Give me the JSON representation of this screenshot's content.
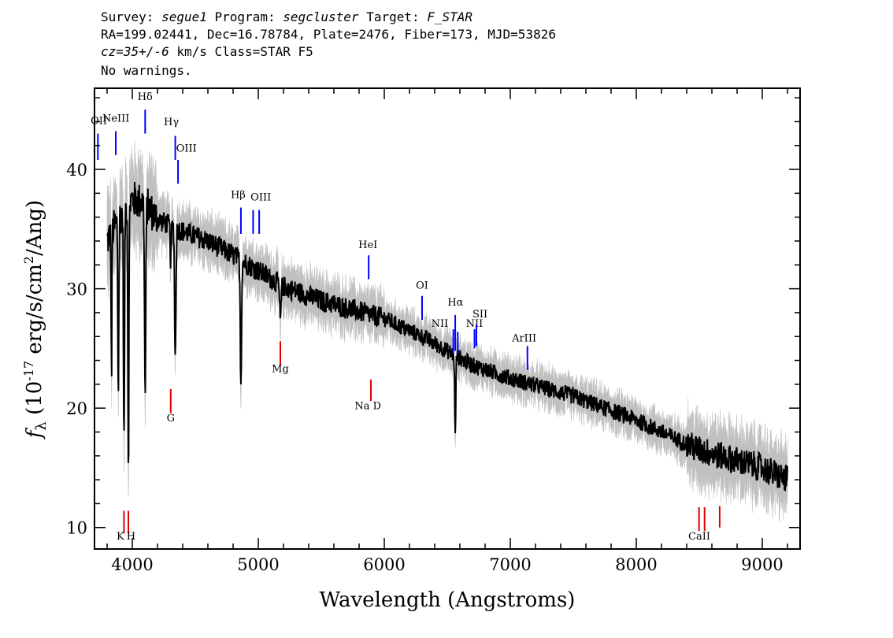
{
  "header": {
    "survey_label": "Survey:",
    "survey": "segue1",
    "program_label": "Program:",
    "program": "segcluster",
    "target_label": "Target:",
    "target": "F_STAR",
    "line2": "RA=199.02441, Dec=16.78784, Plate=2476, Fiber=173, MJD=53826",
    "cz": "cz=35+/-6",
    "cz_units": "km/s",
    "class": "Class=STAR F5",
    "warnings": "No warnings."
  },
  "colors": {
    "flux": "#000000",
    "error_band": "#c0c0c0",
    "emission": "#0000ff",
    "absorption": "#dd0000"
  },
  "chart_data": {
    "type": "line",
    "xlabel": "Wavelength (Angstroms)",
    "ylabel_main": "f",
    "ylabel_sub": "λ",
    "ylabel_rest": " (10",
    "ylabel_exp": "-17",
    "ylabel_rest2": " erg/s/cm",
    "ylabel_exp2": "2",
    "ylabel_rest3": "/Ang)",
    "xlim": [
      3700,
      9300
    ],
    "ylim": [
      8.2,
      46.8
    ],
    "xticks": [
      4000,
      5000,
      6000,
      7000,
      8000,
      9000
    ],
    "yticks": [
      10,
      20,
      30,
      40
    ],
    "continuum": [
      [
        3800,
        34
      ],
      [
        3900,
        36
      ],
      [
        4000,
        37.5
      ],
      [
        4100,
        37.2
      ],
      [
        4200,
        35.8
      ],
      [
        4400,
        34.8
      ],
      [
        4600,
        34
      ],
      [
        4800,
        32.8
      ],
      [
        5000,
        31.5
      ],
      [
        5200,
        30.2
      ],
      [
        5500,
        29
      ],
      [
        6000,
        27.5
      ],
      [
        6300,
        26
      ],
      [
        6500,
        24.8
      ],
      [
        6700,
        23.6
      ],
      [
        7000,
        22.5
      ],
      [
        7500,
        21
      ],
      [
        8000,
        19
      ],
      [
        8500,
        16.5
      ],
      [
        9000,
        15
      ],
      [
        9200,
        14
      ]
    ],
    "absorption_features": [
      {
        "name": "K",
        "center": 3934,
        "depth": 20,
        "width": 4
      },
      {
        "name": "H",
        "center": 3969,
        "depth": 22,
        "width": 4
      },
      {
        "name": "H-eps2",
        "center": 3835,
        "depth": 12,
        "width": 3
      },
      {
        "name": "H-eps3",
        "center": 3889,
        "depth": 14,
        "width": 4
      },
      {
        "name": "Hdelta",
        "center": 4102,
        "depth": 16,
        "width": 5
      },
      {
        "name": "G",
        "center": 4305,
        "depth": 3,
        "width": 4
      },
      {
        "name": "Hgamma",
        "center": 4341,
        "depth": 11,
        "width": 5
      },
      {
        "name": "Hbeta",
        "center": 4862,
        "depth": 10,
        "width": 5
      },
      {
        "name": "Mg",
        "center": 5175,
        "depth": 3,
        "width": 6
      },
      {
        "name": "Halpha",
        "center": 6563,
        "depth": 7,
        "width": 4
      }
    ],
    "emission_lines": [
      {
        "label": "OII",
        "wave": 3727,
        "y0": 40.8,
        "y1": 43.0,
        "lx": 3735,
        "ly": 43.8
      },
      {
        "label": "NeIII",
        "wave": 3869,
        "y0": 41.2,
        "y1": 43.2,
        "lx": 3870,
        "ly": 44.0
      },
      {
        "label": "Hδ",
        "wave": 4102,
        "y0": 43.0,
        "y1": 45.0,
        "lx": 4102,
        "ly": 45.8
      },
      {
        "label": "Hγ",
        "wave": 4341,
        "y0": 40.8,
        "y1": 42.8,
        "lx": 4310,
        "ly": 43.7
      },
      {
        "label": "OIII",
        "wave": 4363,
        "y0": 38.8,
        "y1": 40.8,
        "lx": 4430,
        "ly": 41.5
      },
      {
        "label": "Hβ",
        "wave": 4862,
        "y0": 34.6,
        "y1": 36.8,
        "lx": 4840,
        "ly": 37.6
      },
      {
        "label": "OIII",
        "wave": 4959,
        "y0": 34.6,
        "y1": 36.6,
        "lx": 5020,
        "ly": 37.4
      },
      {
        "label": "OIII2",
        "wave": 5007,
        "y0": 34.6,
        "y1": 36.6,
        "lx": null,
        "ly": null
      },
      {
        "label": "HeI",
        "wave": 5876,
        "y0": 30.8,
        "y1": 32.8,
        "lx": 5870,
        "ly": 33.4
      },
      {
        "label": "OI",
        "wave": 6300,
        "y0": 27.4,
        "y1": 29.4,
        "lx": 6300,
        "ly": 30.0
      },
      {
        "label": "NII",
        "wave": 6548,
        "y0": 24.6,
        "y1": 26.6,
        "lx": 6440,
        "ly": 26.8
      },
      {
        "label": "Hα",
        "wave": 6563,
        "y0": 24.8,
        "y1": 27.8,
        "lx": 6565,
        "ly": 28.6
      },
      {
        "label": "NII2",
        "wave": 6583,
        "y0": 24.6,
        "y1": 26.4,
        "lx": null,
        "ly": null
      },
      {
        "label": "NII",
        "wave": 6716,
        "y0": 25.0,
        "y1": 26.6,
        "lx": 6715,
        "ly": 26.8
      },
      {
        "label": "SII",
        "wave": 6731,
        "y0": 25.2,
        "y1": 27.0,
        "lx": 6760,
        "ly": 27.6
      },
      {
        "label": "ArIII",
        "wave": 7136,
        "y0": 23.2,
        "y1": 25.2,
        "lx": 7110,
        "ly": 25.6
      }
    ],
    "absorption_lines": [
      {
        "label": "K",
        "wave": 3934,
        "y0": 9.5,
        "y1": 11.4,
        "lx": 3905,
        "ly": 9.0
      },
      {
        "label": "H",
        "wave": 3969,
        "y0": 9.5,
        "y1": 11.4,
        "lx": 3990,
        "ly": 9.0
      },
      {
        "label": "G",
        "wave": 4305,
        "y0": 19.6,
        "y1": 21.6,
        "lx": 4305,
        "ly": 18.9
      },
      {
        "label": "Mg",
        "wave": 5175,
        "y0": 23.6,
        "y1": 25.6,
        "lx": 5175,
        "ly": 23.0
      },
      {
        "label": "Na  D",
        "wave": 5894,
        "y0": 20.6,
        "y1": 22.4,
        "lx": 5870,
        "ly": 19.9
      },
      {
        "label": "CaII",
        "wave": 8498,
        "y0": 9.7,
        "y1": 11.7,
        "lx": 8500,
        "ly": 9.0
      },
      {
        "label": "CaII2",
        "wave": 8542,
        "y0": 9.7,
        "y1": 11.7,
        "lx": null,
        "ly": null
      },
      {
        "label": "CaII3",
        "wave": 8662,
        "y0": 10.0,
        "y1": 11.8,
        "lx": null,
        "ly": null
      }
    ]
  }
}
